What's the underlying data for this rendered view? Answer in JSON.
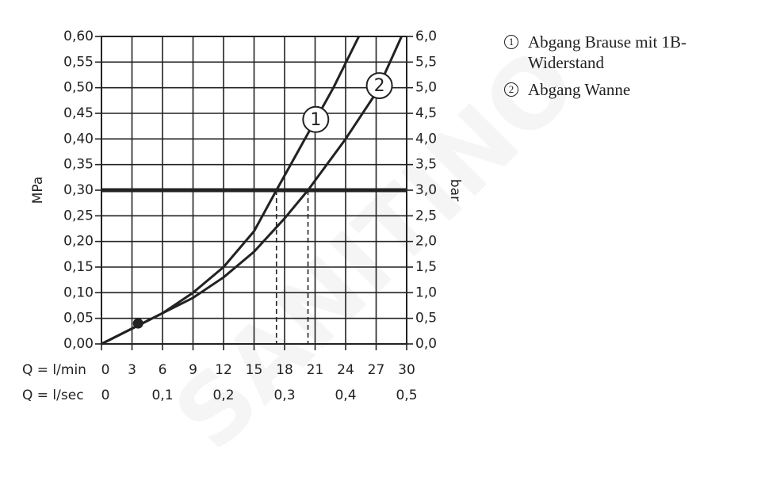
{
  "chart_data": {
    "type": "line",
    "y_label": "MPa",
    "y2_label": "bar",
    "x_label": "Q = l/min",
    "x2_label": "Q = l/sec",
    "xlim": [
      0,
      30
    ],
    "xticks": [
      0,
      3,
      6,
      9,
      12,
      15,
      18,
      21,
      24,
      27,
      30
    ],
    "x2lim": [
      0,
      0.5
    ],
    "x2ticks": [
      0,
      {
        "value": 0.1,
        "label": "0,1"
      },
      {
        "value": 0.2,
        "label": "0,2"
      },
      {
        "value": 0.3,
        "label": "0,3"
      },
      {
        "value": 0.4,
        "label": "0,4"
      },
      {
        "value": 0.5,
        "label": "0,5"
      }
    ],
    "ylim": [
      0,
      0.6
    ],
    "yticks": [
      {
        "value": 0,
        "label": "0,00"
      },
      {
        "value": 0.05,
        "label": "0,05"
      },
      {
        "value": 0.1,
        "label": "0,10"
      },
      {
        "value": 0.15,
        "label": "0,15"
      },
      {
        "value": 0.2,
        "label": "0,20"
      },
      {
        "value": 0.25,
        "label": "0,25"
      },
      {
        "value": 0.3,
        "label": "0,30"
      },
      {
        "value": 0.35,
        "label": "0,35"
      },
      {
        "value": 0.4,
        "label": "0,40"
      },
      {
        "value": 0.45,
        "label": "0,45"
      },
      {
        "value": 0.5,
        "label": "0,50"
      },
      {
        "value": 0.55,
        "label": "0,55"
      },
      {
        "value": 0.6,
        "label": "0,60"
      }
    ],
    "y2lim": [
      0,
      6
    ],
    "y2ticks": [
      {
        "value": 0,
        "label": "0,0"
      },
      {
        "value": 0.5,
        "label": "0,5"
      },
      {
        "value": 1,
        "label": "1,0"
      },
      {
        "value": 1.5,
        "label": "1,5"
      },
      {
        "value": 2,
        "label": "2,0"
      },
      {
        "value": 2.5,
        "label": "2,5"
      },
      {
        "value": 3,
        "label": "3,0"
      },
      {
        "value": 3.5,
        "label": "3,5"
      },
      {
        "value": 4,
        "label": "4,0"
      },
      {
        "value": 4.5,
        "label": "4,5"
      },
      {
        "value": 5,
        "label": "5,0"
      },
      {
        "value": 5.5,
        "label": "5,5"
      },
      {
        "value": 6,
        "label": "6,0"
      }
    ],
    "grid": true,
    "reference_line": 0.3,
    "drop_lines": [
      17.2,
      20.3
    ],
    "point": {
      "x": 3.6,
      "y": 0.04
    },
    "series": [
      {
        "label": "1",
        "name": "Abgang Brause mit 1B-Widerstand",
        "color": "#222222",
        "x": [
          0,
          3,
          6,
          9,
          12,
          15,
          17.2,
          20,
          22.8,
          25.3
        ],
        "values": [
          0,
          0.03,
          0.06,
          0.1,
          0.15,
          0.22,
          0.3,
          0.4,
          0.5,
          0.6
        ]
      },
      {
        "label": "2",
        "name": "Abgang Wanne",
        "color": "#222222",
        "x": [
          0,
          3,
          6,
          9,
          12,
          15,
          18,
          20.3,
          24,
          27,
          29.5
        ],
        "values": [
          0,
          0.03,
          0.06,
          0.09,
          0.13,
          0.18,
          0.245,
          0.3,
          0.4,
          0.49,
          0.6
        ]
      }
    ],
    "watermark": "SANITINO"
  }
}
